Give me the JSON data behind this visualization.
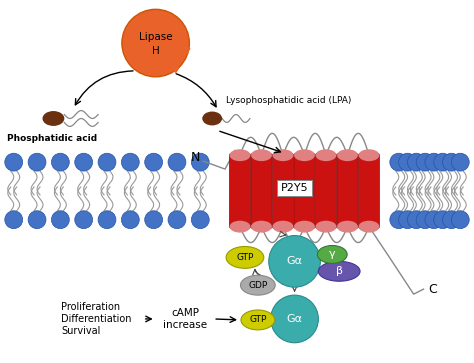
{
  "lipase_color": "#E8622A",
  "phospha_brown": "#6B3010",
  "membrane_blue": "#4472C4",
  "helix_red": "#CC1111",
  "helix_pink": "#E08080",
  "gtp_color": "#CCCC00",
  "gdp_color": "#AAAAAA",
  "galpha_color": "#3AACAC",
  "gamma_color": "#55AA44",
  "beta_color": "#6655AA",
  "bg_color": "#FFFFFF",
  "phosphatidic_label": "Phosphatidic acid",
  "lpa_label": "Lysophosphatidic acid (LPA)",
  "p2y5_label": "P2Y5",
  "N_label": "N",
  "C_label": "C",
  "proliferation_label": "Proliferation\nDifferentiation\nSurvival",
  "camp_label": "cAMP\nincrease"
}
